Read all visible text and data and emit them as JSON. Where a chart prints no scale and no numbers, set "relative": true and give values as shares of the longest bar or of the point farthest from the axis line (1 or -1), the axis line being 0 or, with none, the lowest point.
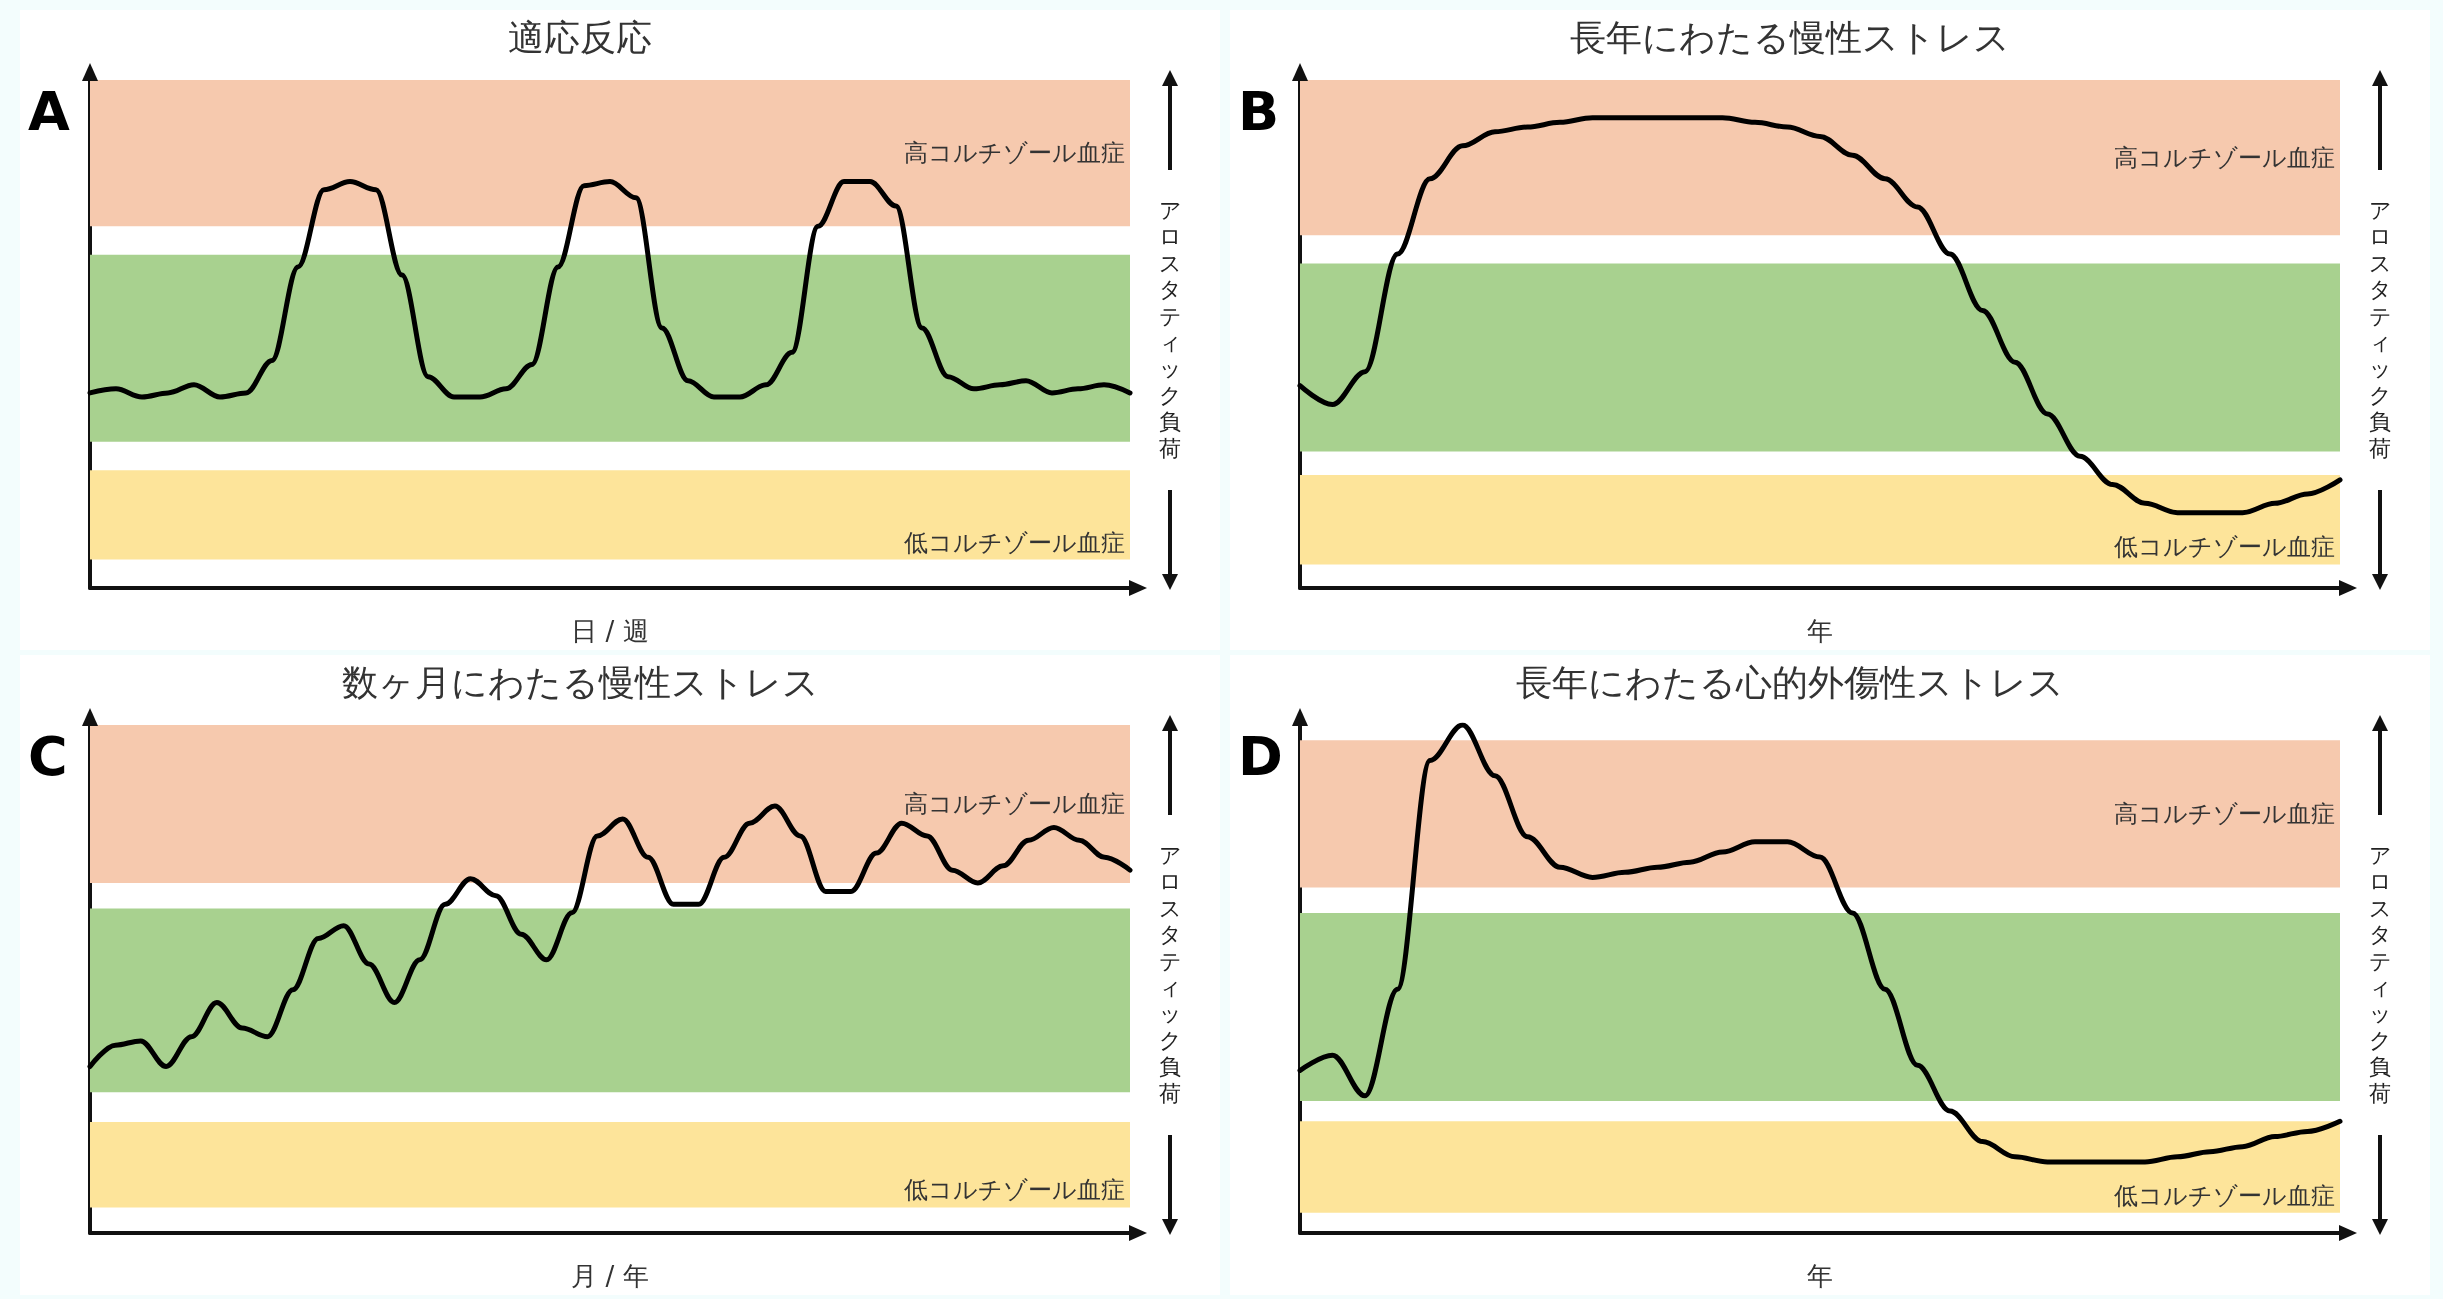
{
  "chart_data": [
    {
      "type": "line",
      "title": "適応反応",
      "xlabel": "日 / 週",
      "ylabel": "アロスタティック負荷",
      "annotations": [
        "A"
      ],
      "relative": true,
      "marker": "none",
      "line_style": "solid",
      "categories": [
        null,
        null,
        null,
        null,
        null,
        null,
        null,
        null,
        null,
        null,
        null,
        null,
        null,
        null,
        null,
        null,
        null,
        null,
        null,
        null,
        null,
        null,
        null,
        null,
        null,
        null,
        null,
        null,
        null,
        null,
        null,
        null,
        null,
        null,
        null,
        null,
        null,
        null,
        null,
        null,
        null
      ],
      "series": [
        {
          "color": "#000000",
          "values": [
            0.48,
            0.49,
            0.47,
            0.48,
            0.5,
            0.47,
            0.48,
            0.56,
            0.79,
            0.98,
            1,
            0.98,
            0.77,
            0.52,
            0.47,
            0.47,
            0.49,
            0.55,
            0.79,
            0.99,
            1,
            0.96,
            0.64,
            0.51,
            0.47,
            0.47,
            0.5,
            0.58,
            0.89,
            1,
            1,
            0.94,
            0.64,
            0.52,
            0.49,
            0.5,
            0.51,
            0.48,
            0.49,
            0.5,
            0.48
          ]
        }
      ],
      "bands": [
        {
          "axis": "y",
          "from": 0.89,
          "to": 1.25,
          "label": "高コルチゾール血症",
          "color": "#f6c9ae"
        },
        {
          "axis": "y",
          "from": 0.36,
          "to": 0.82,
          "color": "#a8d18f"
        },
        {
          "axis": "y",
          "from": 0.07,
          "to": 0.29,
          "label": "低コルチゾール血症",
          "color": "#fde49a"
        }
      ]
    },
    {
      "type": "line",
      "title": "長年にわたる慢性ストレス",
      "xlabel": "年",
      "ylabel": "アロスタティック負荷",
      "annotations": [
        "B"
      ],
      "relative": true,
      "marker": "none",
      "line_style": "solid",
      "categories": [
        null,
        null,
        null,
        null,
        null,
        null,
        null,
        null,
        null,
        null,
        null,
        null,
        null,
        null,
        null,
        null,
        null,
        null,
        null,
        null,
        null,
        null,
        null,
        null,
        null,
        null,
        null,
        null,
        null,
        null,
        null,
        null,
        null
      ],
      "series": [
        {
          "color": "#000000",
          "values": [
            0.43,
            0.39,
            0.46,
            0.71,
            0.87,
            0.94,
            0.97,
            0.98,
            0.99,
            1,
            1,
            1,
            1,
            1,
            0.99,
            0.98,
            0.96,
            0.92,
            0.87,
            0.81,
            0.71,
            0.59,
            0.48,
            0.37,
            0.28,
            0.22,
            0.18,
            0.16,
            0.16,
            0.16,
            0.18,
            0.2,
            0.23
          ]
        }
      ],
      "bands": [
        {
          "axis": "y",
          "from": 0.75,
          "to": 1.08,
          "label": "高コルチゾール血症",
          "color": "#f6c9ae"
        },
        {
          "axis": "y",
          "from": 0.29,
          "to": 0.69,
          "color": "#a8d18f"
        },
        {
          "axis": "y",
          "from": 0.05,
          "to": 0.24,
          "label": "低コルチゾール血症",
          "color": "#fde49a"
        }
      ]
    },
    {
      "type": "line",
      "title": "数ヶ月にわたる慢性ストレス",
      "xlabel": "月 / 年",
      "ylabel": "アロスタティック負荷",
      "annotations": [
        "C"
      ],
      "relative": true,
      "marker": "none",
      "line_style": "solid",
      "categories": [
        null,
        null,
        null,
        null,
        null,
        null,
        null,
        null,
        null,
        null,
        null,
        null,
        null,
        null,
        null,
        null,
        null,
        null,
        null,
        null,
        null,
        null,
        null,
        null,
        null,
        null,
        null,
        null,
        null,
        null,
        null,
        null,
        null,
        null,
        null,
        null,
        null,
        null,
        null,
        null,
        null,
        null
      ],
      "series": [
        {
          "color": "#000000",
          "values": [
            0.39,
            0.44,
            0.45,
            0.39,
            0.46,
            0.54,
            0.48,
            0.46,
            0.57,
            0.69,
            0.72,
            0.63,
            0.54,
            0.64,
            0.77,
            0.83,
            0.79,
            0.7,
            0.64,
            0.75,
            0.93,
            0.97,
            0.88,
            0.77,
            0.77,
            0.88,
            0.96,
            1,
            0.93,
            0.8,
            0.8,
            0.89,
            0.96,
            0.93,
            0.85,
            0.82,
            0.86,
            0.92,
            0.95,
            0.92,
            0.88,
            0.85
          ]
        }
      ],
      "bands": [
        {
          "axis": "y",
          "from": 0.82,
          "to": 1.19,
          "label": "高コルチゾール血症",
          "color": "#f6c9ae"
        },
        {
          "axis": "y",
          "from": 0.33,
          "to": 0.76,
          "color": "#a8d18f"
        },
        {
          "axis": "y",
          "from": 0.06,
          "to": 0.26,
          "label": "低コルチゾール血症",
          "color": "#fde49a"
        }
      ]
    },
    {
      "type": "line",
      "title": "長年にわたる心的外傷性ストレス",
      "xlabel": "年",
      "ylabel": "アロスタティック負荷",
      "annotations": [
        "D"
      ],
      "relative": true,
      "marker": "none",
      "line_style": "solid",
      "categories": [
        null,
        null,
        null,
        null,
        null,
        null,
        null,
        null,
        null,
        null,
        null,
        null,
        null,
        null,
        null,
        null,
        null,
        null,
        null,
        null,
        null,
        null,
        null,
        null,
        null,
        null,
        null,
        null,
        null,
        null,
        null,
        null,
        null
      ],
      "series": [
        {
          "color": "#000000",
          "values": [
            0.32,
            0.35,
            0.27,
            0.48,
            0.93,
            1,
            0.9,
            0.78,
            0.72,
            0.7,
            0.71,
            0.72,
            0.73,
            0.75,
            0.77,
            0.77,
            0.74,
            0.63,
            0.48,
            0.33,
            0.24,
            0.18,
            0.15,
            0.14,
            0.14,
            0.14,
            0.14,
            0.15,
            0.16,
            0.17,
            0.19,
            0.2,
            0.22
          ]
        }
      ],
      "bands": [
        {
          "axis": "y",
          "from": 0.68,
          "to": 0.97,
          "label": "高コルチゾール血症",
          "color": "#f6c9ae"
        },
        {
          "axis": "y",
          "from": 0.26,
          "to": 0.63,
          "color": "#a8d18f"
        },
        {
          "axis": "y",
          "from": 0.04,
          "to": 0.22,
          "label": "低コルチゾール血症",
          "color": "#fde49a"
        }
      ]
    }
  ]
}
